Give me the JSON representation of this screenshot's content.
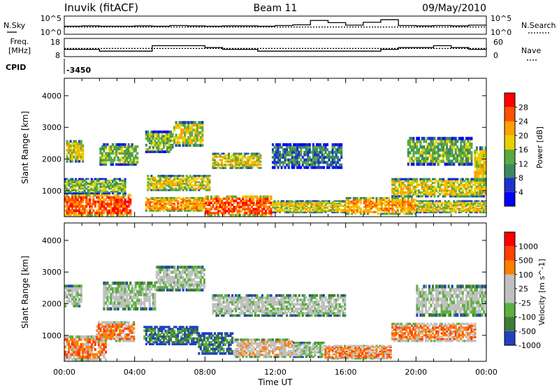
{
  "header": {
    "station": "Inuvik (fitACF)",
    "beam": "Beam 11",
    "date": "09/May/2010"
  },
  "labels": {
    "nsky": "N.Sky",
    "nsearch": "N.Search",
    "freq_line1": "Freq.",
    "freq_line2": "[MHz]",
    "nave": "Nave",
    "cpid": "CPID",
    "cpid_value": "-3450",
    "nsky_ticks": [
      "10^5",
      "10^0"
    ],
    "nsearch_ticks": [
      "10^5",
      "10^0"
    ],
    "freq_ticks": [
      "18",
      "8"
    ],
    "nave_ticks": [
      "60",
      "0"
    ]
  },
  "colors": {
    "power": [
      "#0000ff",
      "#2030d0",
      "#3a8a60",
      "#5aaa40",
      "#e6d000",
      "#ffa000",
      "#ff5000",
      "#ff0000"
    ],
    "velocity": [
      "#2040c0",
      "#3f7a3a",
      "#5ab040",
      "#c0c0c0",
      "#c0c0c0",
      "#ff8000",
      "#ff4000",
      "#ff0000"
    ]
  },
  "chart_data": [
    {
      "type": "line",
      "name": "nsky-panel",
      "ylim": [
        0,
        5
      ],
      "series": [
        {
          "name": "N.Sky",
          "x": [
            0,
            1,
            2,
            3,
            4,
            5,
            6,
            7,
            8,
            9,
            10,
            11,
            12,
            13,
            14,
            15,
            16,
            17,
            18,
            19,
            20,
            21,
            22,
            23,
            24
          ],
          "values": [
            2.2,
            2.3,
            2.2,
            2.2,
            2.3,
            2.2,
            2.4,
            2.3,
            2.2,
            2.3,
            2.3,
            2.2,
            2.4,
            2.6,
            3.8,
            3.2,
            2.5,
            3.3,
            4.0,
            2.4,
            2.3,
            2.4,
            2.3,
            2.5,
            2.4
          ]
        },
        {
          "name": "N.Search",
          "x": [
            0,
            24
          ],
          "values": [
            2.0,
            2.0
          ]
        }
      ]
    },
    {
      "type": "line",
      "name": "freq-panel",
      "series": [
        {
          "name": "Freq.",
          "ylim": [
            8,
            18
          ],
          "x": [
            0,
            1,
            2,
            3,
            4,
            5,
            6,
            7,
            8,
            9,
            10,
            11,
            12,
            13,
            14,
            15,
            16,
            17,
            18,
            19,
            20,
            21,
            22,
            23,
            24
          ],
          "values": [
            12,
            12,
            11,
            11,
            11,
            14,
            14,
            14,
            13,
            12,
            12,
            11,
            11,
            11,
            11,
            11,
            11,
            11,
            12,
            13,
            13,
            14,
            13,
            12,
            13
          ]
        },
        {
          "name": "Nave",
          "ylim": [
            0,
            60
          ],
          "x": [
            0,
            24
          ],
          "values": [
            27,
            27
          ]
        }
      ]
    },
    {
      "type": "heatmap",
      "title": "",
      "xlabel": "Time UT",
      "ylabel": "Slant Range [km]",
      "xlim": [
        0,
        24
      ],
      "ylim": [
        180,
        4550
      ],
      "x_ticks": [
        "00:00",
        "04:00",
        "08:00",
        "12:00",
        "16:00",
        "20:00",
        "00:00"
      ],
      "y_ticks": [
        1000,
        2000,
        3000,
        4000
      ],
      "colorbar": {
        "label": "Power [dB]",
        "ticks": [
          4,
          8,
          12,
          16,
          20,
          24,
          28
        ],
        "range": [
          0,
          32
        ]
      },
      "bands": [
        {
          "t": [
            0.0,
            3.8
          ],
          "r": [
            200,
            900
          ],
          "level": 6
        },
        {
          "t": [
            4.6,
            8.0
          ],
          "r": [
            350,
            800
          ],
          "level": 5
        },
        {
          "t": [
            8.0,
            11.8
          ],
          "r": [
            200,
            850
          ],
          "level": 6
        },
        {
          "t": [
            11.8,
            16.0
          ],
          "r": [
            300,
            700
          ],
          "level": 4
        },
        {
          "t": [
            16.0,
            20.0
          ],
          "r": [
            250,
            800
          ],
          "level": 5
        },
        {
          "t": [
            20.0,
            24.0
          ],
          "r": [
            300,
            700
          ],
          "level": 4
        },
        {
          "t": [
            0.0,
            3.5
          ],
          "r": [
            900,
            1400
          ],
          "level": 3
        },
        {
          "t": [
            4.7,
            8.3
          ],
          "r": [
            1000,
            1500
          ],
          "level": 4
        },
        {
          "t": [
            18.6,
            24.0
          ],
          "r": [
            800,
            1400
          ],
          "level": 4
        },
        {
          "t": [
            0.1,
            1.1
          ],
          "r": [
            1900,
            2600
          ],
          "level": 4
        },
        {
          "t": [
            2.0,
            4.2
          ],
          "r": [
            1800,
            2500
          ],
          "level": 3
        },
        {
          "t": [
            4.6,
            6.2
          ],
          "r": [
            2200,
            2900
          ],
          "level": 3
        },
        {
          "t": [
            6.2,
            7.9
          ],
          "r": [
            2400,
            3200
          ],
          "level": 4
        },
        {
          "t": [
            8.4,
            11.2
          ],
          "r": [
            1700,
            2200
          ],
          "level": 4
        },
        {
          "t": [
            11.8,
            15.8
          ],
          "r": [
            1700,
            2500
          ],
          "level": 2
        },
        {
          "t": [
            19.5,
            23.2
          ],
          "r": [
            1800,
            2700
          ],
          "level": 3
        },
        {
          "t": [
            23.3,
            24.0
          ],
          "r": [
            1300,
            2400
          ],
          "level": 4
        }
      ]
    },
    {
      "type": "heatmap",
      "title": "",
      "xlabel": "Time UT",
      "ylabel": "Slant Range [km]",
      "xlim": [
        0,
        24
      ],
      "ylim": [
        180,
        4550
      ],
      "x_ticks": [
        "00:00",
        "04:00",
        "08:00",
        "12:00",
        "16:00",
        "20:00",
        "00:00"
      ],
      "y_ticks": [
        1000,
        2000,
        3000,
        4000
      ],
      "colorbar": {
        "label": "Velocity [m s^-1]",
        "ticks": [
          "1000",
          "500",
          "100",
          "25",
          "-25",
          "-100",
          "-500",
          "-1000"
        ]
      },
      "bands": [
        {
          "t": [
            0.0,
            2.4
          ],
          "r": [
            200,
            1000
          ],
          "level": 5
        },
        {
          "t": [
            1.8,
            4.0
          ],
          "r": [
            800,
            1450
          ],
          "level": 5
        },
        {
          "t": [
            4.5,
            7.6
          ],
          "r": [
            700,
            1300
          ],
          "level": 1
        },
        {
          "t": [
            7.6,
            9.6
          ],
          "r": [
            400,
            1100
          ],
          "level": 1
        },
        {
          "t": [
            9.6,
            13.0
          ],
          "r": [
            300,
            900
          ],
          "level": 4
        },
        {
          "t": [
            13.0,
            14.8
          ],
          "r": [
            300,
            800
          ],
          "level": 3
        },
        {
          "t": [
            14.8,
            18.6
          ],
          "r": [
            250,
            700
          ],
          "level": 5
        },
        {
          "t": [
            18.6,
            23.4
          ],
          "r": [
            800,
            1400
          ],
          "level": 5
        },
        {
          "t": [
            0.0,
            1.0
          ],
          "r": [
            1900,
            2600
          ],
          "level": 3
        },
        {
          "t": [
            2.2,
            5.2
          ],
          "r": [
            1800,
            2700
          ],
          "level": 3
        },
        {
          "t": [
            5.2,
            8.0
          ],
          "r": [
            2400,
            3200
          ],
          "level": 3
        },
        {
          "t": [
            8.4,
            16.0
          ],
          "r": [
            1600,
            2300
          ],
          "level": 3
        },
        {
          "t": [
            20.0,
            24.0
          ],
          "r": [
            1600,
            2600
          ],
          "level": 3
        }
      ]
    }
  ]
}
